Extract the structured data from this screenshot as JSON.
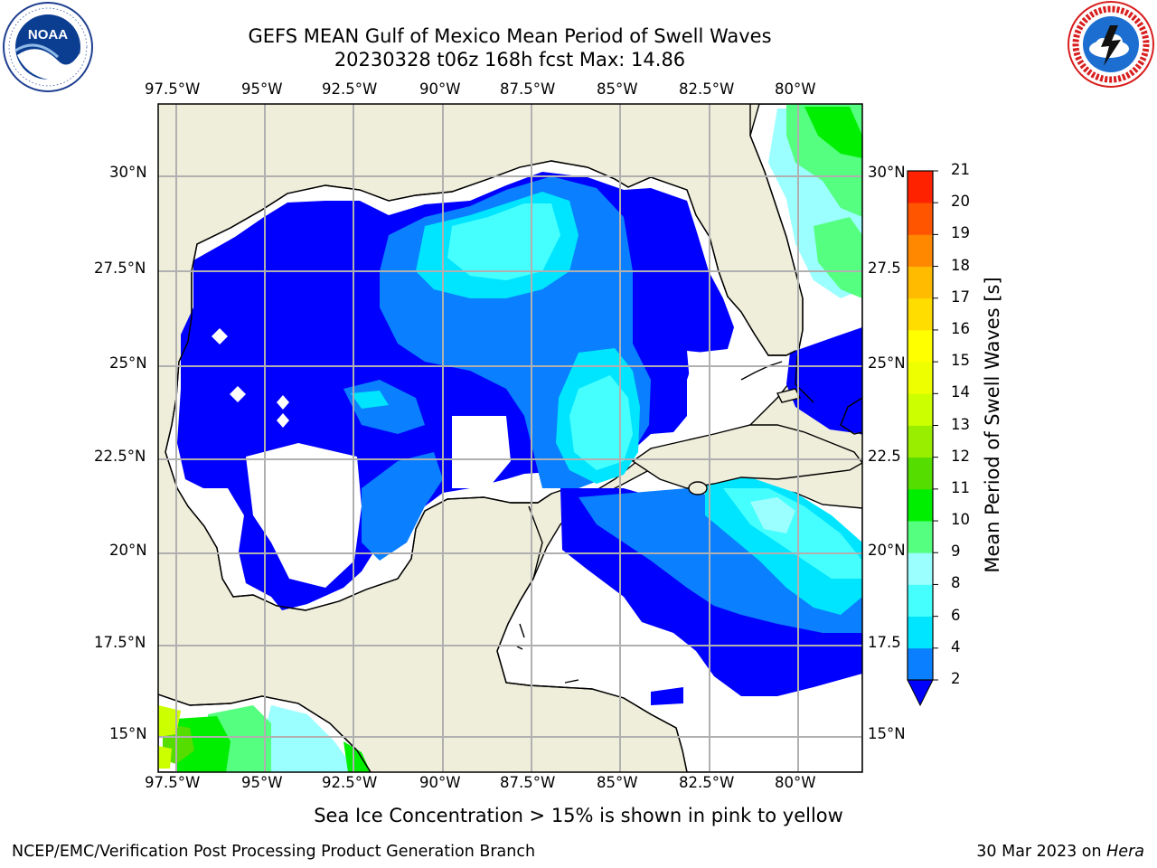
{
  "title": {
    "line1": "GEFS MEAN Gulf of Mexico Mean Period of Swell Waves",
    "line2": "20230328 t06z 168h fcst   Max: 14.86"
  },
  "footer": {
    "note": "Sea Ice Concentration > 15% is shown in pink to yellow",
    "credit": "NCEP/EMC/Verification Post Processing Product Generation Branch",
    "date_prefix": "30 Mar 2023 on ",
    "date_host": "Hera"
  },
  "logos": {
    "noaa": {
      "icon": "noaa-logo",
      "text": "NOAA",
      "ring_text": "NATIONAL OCEANIC AND ATMOSPHERIC ADMINISTRATION · U.S. DEPARTMENT OF COMMERCE"
    },
    "nws": {
      "icon": "nws-logo",
      "ring_text": "NATIONAL WEATHER SERVICE"
    }
  },
  "map": {
    "lon_ticks": [
      "97.5°W",
      "95°W",
      "92.5°W",
      "90°W",
      "87.5°W",
      "85°W",
      "82.5°W",
      "80°W"
    ],
    "lat_ticks_left": [
      "30°N",
      "27.5°N",
      "25°N",
      "22.5°N",
      "20°N",
      "17.5°N",
      "15°N"
    ],
    "lat_ticks_right": [
      "30°N",
      "27.5",
      "25°N",
      "22.5",
      "20°N",
      "17.5",
      "15°N"
    ],
    "land_color": "#efeedb",
    "grid_color": "#b0b0b0"
  },
  "colorbar": {
    "label": "Mean Period of Swell Waves [s]",
    "ticks": [
      "2",
      "4",
      "6",
      "8",
      "9",
      "10",
      "11",
      "12",
      "13",
      "14",
      "15",
      "16",
      "17",
      "18",
      "19",
      "20",
      "21"
    ],
    "colors": [
      "#0a7fff",
      "#00e5ff",
      "#45ffff",
      "#9bffff",
      "#55ff7f",
      "#00ee00",
      "#55dd00",
      "#99ee00",
      "#ccff00",
      "#eeff00",
      "#ffff00",
      "#ffdd00",
      "#ffbb00",
      "#ff8800",
      "#ff5500",
      "#ff2200"
    ],
    "under_color": "#0000ff"
  }
}
